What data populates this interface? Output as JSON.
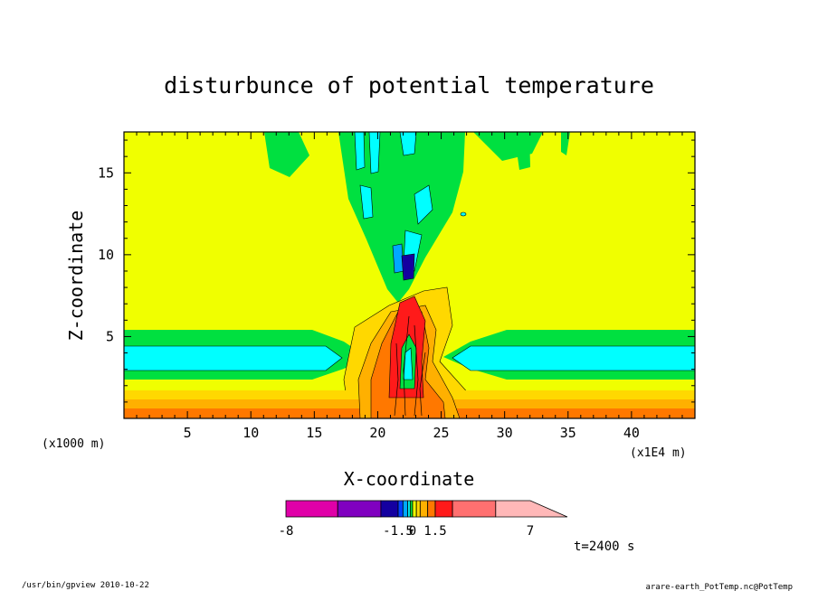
{
  "chart_data": {
    "type": "heatmap",
    "subtype": "filled-contour",
    "title": "disturbunce of potential temperature",
    "xlabel": "X-coordinate",
    "ylabel": "Z-coordinate",
    "x_unit": "(x1E4 m)",
    "y_unit": "(x1000 m)",
    "xlim": [
      0,
      45
    ],
    "ylim": [
      0,
      17.5
    ],
    "x_ticks": [
      5,
      10,
      15,
      20,
      25,
      30,
      35,
      40
    ],
    "y_ticks": [
      5,
      10,
      15
    ],
    "grid": false,
    "time_label": "t=2400 s",
    "colorbar": {
      "tick_labels": [
        "-8",
        "-1.5",
        "0",
        "1.5",
        "7"
      ],
      "tick_values": [
        -8,
        -1.5,
        0,
        1.5,
        7
      ],
      "levels": [
        {
          "lo": -8,
          "hi": -5,
          "color": "#e000a8"
        },
        {
          "lo": -5,
          "hi": -2.5,
          "color": "#8000c0"
        },
        {
          "lo": -2.5,
          "hi": -1.5,
          "color": "#1400a0"
        },
        {
          "lo": -1.5,
          "hi": -1,
          "color": "#0040ff"
        },
        {
          "lo": -1,
          "hi": -0.5,
          "color": "#00a8ff"
        },
        {
          "lo": -0.5,
          "hi": -0.25,
          "color": "#00ffff"
        },
        {
          "lo": -0.25,
          "hi": 0,
          "color": "#00e040"
        },
        {
          "lo": 0,
          "hi": 0.25,
          "color": "#f0ff00"
        },
        {
          "lo": 0.25,
          "hi": 0.5,
          "color": "#ffd800"
        },
        {
          "lo": 0.5,
          "hi": 1,
          "color": "#ffb000"
        },
        {
          "lo": 1,
          "hi": 1.5,
          "color": "#ff7800"
        },
        {
          "lo": 1.5,
          "hi": 2.5,
          "color": "#ff1a1a"
        },
        {
          "lo": 2.5,
          "hi": 5,
          "color": "#ff7070"
        },
        {
          "lo": 5,
          "hi": 7,
          "color": "#ffb8b8"
        }
      ]
    }
  },
  "footer": {
    "left": "/usr/bin/gpview  2010-10-22",
    "right": "arare-earth_PotTemp.nc@PotTemp"
  }
}
